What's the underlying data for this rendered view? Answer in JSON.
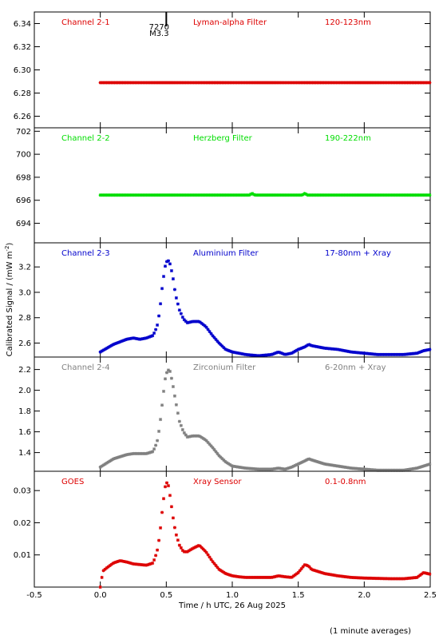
{
  "chart_data": {
    "type": "scatter",
    "xlabel": "Time / h UTC, 26 Aug 2025",
    "ylabel": "Calibrated Signal / (mW m",
    "ylabel_sup": "-2",
    "ylabel_close": ")",
    "footnote": "(1 minute averages)",
    "xlim": [
      -0.5,
      2.5
    ],
    "xticks": [
      "-0.5",
      "0.0",
      "0.5",
      "1.0",
      "1.5",
      "2.0",
      "2.5"
    ],
    "event_marker": {
      "x": 0.5,
      "label1": "7270",
      "label2": "M3.3"
    },
    "panels": [
      {
        "channel": "Channel 2-1",
        "filter": "Lyman-alpha Filter",
        "band": "120-123nm",
        "color": "#dd0000",
        "ylim": [
          6.25,
          6.35
        ],
        "yticks": [
          "6.26",
          "6.28",
          "6.30",
          "6.32",
          "6.34"
        ],
        "series": {
          "x": [
            0.0,
            2.5
          ],
          "y": [
            6.289,
            6.289
          ]
        }
      },
      {
        "channel": "Channel 2-2",
        "filter": "Herzberg Filter",
        "band": "190-222nm",
        "color": "#00dd00",
        "ylim": [
          692.3,
          702.3
        ],
        "yticks": [
          "694",
          "696",
          "698",
          "700",
          "702"
        ],
        "series": {
          "x": [
            0.0,
            1.13,
            1.15,
            1.17,
            1.53,
            1.55,
            1.57,
            2.5
          ],
          "y": [
            696.45,
            696.45,
            696.6,
            696.45,
            696.45,
            696.6,
            696.45,
            696.45
          ]
        }
      },
      {
        "channel": "Channel 2-3",
        "filter": "Aluminium Filter",
        "band": "17-80nm + Xray",
        "color": "#0000cc",
        "ylim": [
          2.49,
          3.39
        ],
        "yticks": [
          "2.6",
          "2.8",
          "3.0",
          "3.2"
        ],
        "series": {
          "x": [
            0.0,
            0.05,
            0.1,
            0.15,
            0.2,
            0.25,
            0.3,
            0.35,
            0.4,
            0.43,
            0.45,
            0.47,
            0.49,
            0.51,
            0.53,
            0.55,
            0.57,
            0.6,
            0.63,
            0.66,
            0.7,
            0.75,
            0.8,
            0.85,
            0.9,
            0.95,
            1.0,
            1.05,
            1.1,
            1.2,
            1.3,
            1.35,
            1.4,
            1.45,
            1.5,
            1.55,
            1.58,
            1.6,
            1.7,
            1.8,
            1.9,
            2.0,
            2.1,
            2.2,
            2.3,
            2.4,
            2.45,
            2.5
          ],
          "y": [
            2.53,
            2.56,
            2.59,
            2.61,
            2.63,
            2.64,
            2.63,
            2.64,
            2.66,
            2.73,
            2.85,
            3.05,
            3.2,
            3.26,
            3.22,
            3.12,
            2.98,
            2.86,
            2.79,
            2.76,
            2.77,
            2.77,
            2.73,
            2.66,
            2.6,
            2.55,
            2.53,
            2.52,
            2.51,
            2.5,
            2.51,
            2.53,
            2.51,
            2.52,
            2.55,
            2.57,
            2.59,
            2.58,
            2.56,
            2.55,
            2.53,
            2.52,
            2.51,
            2.51,
            2.51,
            2.52,
            2.54,
            2.55
          ]
        }
      },
      {
        "channel": "Channel 2-4",
        "filter": "Zirconium Filter",
        "band": "6-20nm + Xray",
        "color": "#808080",
        "ylim": [
          1.22,
          2.32
        ],
        "yticks": [
          "1.4",
          "1.6",
          "1.8",
          "2.0",
          "2.2"
        ],
        "series": {
          "x": [
            0.0,
            0.05,
            0.1,
            0.15,
            0.2,
            0.25,
            0.3,
            0.35,
            0.4,
            0.43,
            0.45,
            0.47,
            0.49,
            0.51,
            0.53,
            0.55,
            0.57,
            0.6,
            0.63,
            0.66,
            0.7,
            0.75,
            0.8,
            0.85,
            0.9,
            0.95,
            1.0,
            1.05,
            1.1,
            1.2,
            1.3,
            1.35,
            1.4,
            1.45,
            1.5,
            1.55,
            1.58,
            1.6,
            1.7,
            1.8,
            1.9,
            2.0,
            2.1,
            2.2,
            2.3,
            2.4,
            2.45,
            2.5
          ],
          "y": [
            1.26,
            1.3,
            1.34,
            1.36,
            1.38,
            1.39,
            1.39,
            1.39,
            1.41,
            1.5,
            1.65,
            1.88,
            2.1,
            2.2,
            2.18,
            2.05,
            1.9,
            1.7,
            1.6,
            1.55,
            1.56,
            1.56,
            1.52,
            1.45,
            1.37,
            1.31,
            1.27,
            1.26,
            1.25,
            1.24,
            1.24,
            1.25,
            1.24,
            1.26,
            1.29,
            1.32,
            1.34,
            1.33,
            1.29,
            1.27,
            1.25,
            1.24,
            1.23,
            1.23,
            1.23,
            1.25,
            1.27,
            1.29
          ]
        }
      },
      {
        "channel": "GOES",
        "filter": "Xray Sensor",
        "band": "0.1-0.8nm",
        "color": "#dd0000",
        "ylim": [
          0.0,
          0.036
        ],
        "yticks": [
          "0.01",
          "0.02",
          "0.03"
        ],
        "series": {
          "x": [
            0.0,
            0.02,
            0.05,
            0.1,
            0.15,
            0.2,
            0.25,
            0.3,
            0.35,
            0.4,
            0.43,
            0.45,
            0.47,
            0.49,
            0.51,
            0.53,
            0.55,
            0.57,
            0.6,
            0.63,
            0.66,
            0.7,
            0.75,
            0.8,
            0.85,
            0.9,
            0.95,
            1.0,
            1.05,
            1.1,
            1.2,
            1.3,
            1.35,
            1.4,
            1.45,
            1.5,
            1.55,
            1.58,
            1.6,
            1.7,
            1.8,
            1.9,
            2.0,
            2.1,
            2.2,
            2.3,
            2.4,
            2.45,
            2.5
          ],
          "y": [
            0.0,
            0.005,
            0.006,
            0.0075,
            0.0082,
            0.0078,
            0.0072,
            0.007,
            0.0068,
            0.0075,
            0.011,
            0.016,
            0.024,
            0.031,
            0.033,
            0.028,
            0.022,
            0.017,
            0.013,
            0.011,
            0.011,
            0.012,
            0.013,
            0.011,
            0.008,
            0.0055,
            0.0042,
            0.0035,
            0.0032,
            0.003,
            0.003,
            0.003,
            0.0035,
            0.0032,
            0.003,
            0.0045,
            0.007,
            0.0065,
            0.0055,
            0.0042,
            0.0035,
            0.003,
            0.0028,
            0.0027,
            0.0026,
            0.0026,
            0.003,
            0.0045,
            0.004
          ]
        }
      }
    ]
  }
}
